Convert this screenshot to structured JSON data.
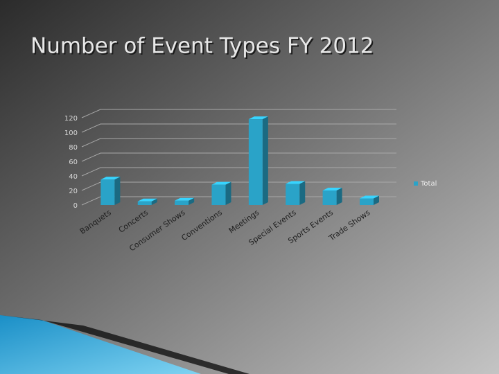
{
  "chart_data": {
    "type": "bar3d",
    "title": "Number of Event Types FY 2012",
    "categories": [
      "Banquets",
      "Concerts",
      "Consumer Shows",
      "Conventions",
      "Meetings",
      "Special Events",
      "Sports Events",
      "Trade Shows"
    ],
    "series": [
      {
        "name": "Total",
        "color": "#2aa3c8",
        "values": [
          35,
          5,
          6,
          28,
          118,
          29,
          20,
          9
        ]
      }
    ],
    "ylim": [
      0,
      120
    ],
    "yticks": [
      0,
      20,
      40,
      60,
      80,
      100,
      120
    ],
    "grid": true,
    "legend": "right"
  }
}
